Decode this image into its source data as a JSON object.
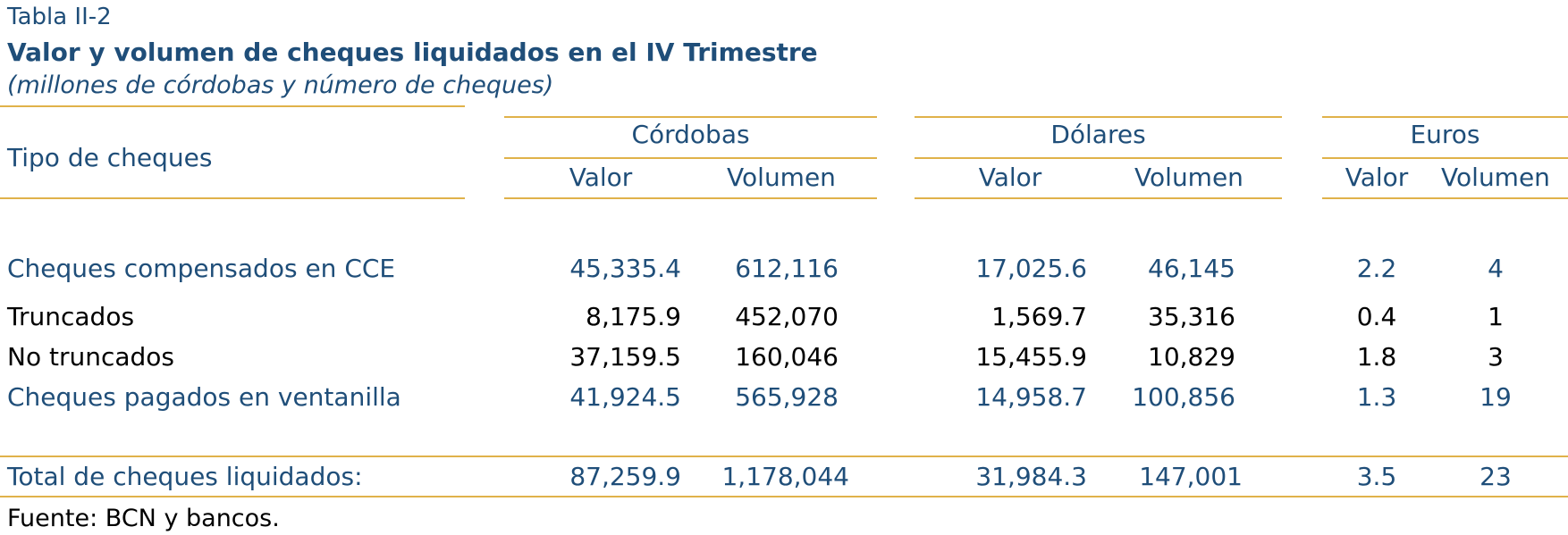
{
  "table_number": "Tabla II-2",
  "title": "Valor y volumen de cheques liquidados en el IV Trimestre",
  "subtitle": "(millones de córdobas y número de cheques)",
  "header": {
    "row_label": "Tipo de cheques",
    "currencies": [
      "Córdobas",
      "Dólares",
      "Euros"
    ],
    "valor": "Valor",
    "volumen": "Volumen"
  },
  "rows": [
    {
      "label": "Cheques compensados en CCE",
      "cor_valor": "45,335.4",
      "cor_vol": "612,116",
      "dol_valor": "17,025.6",
      "dol_vol": "46,145",
      "eur_valor": "2.2",
      "eur_vol": "4"
    },
    {
      "label": "Truncados",
      "cor_valor": "8,175.9",
      "cor_vol": "452,070",
      "dol_valor": "1,569.7",
      "dol_vol": "35,316",
      "eur_valor": "0.4",
      "eur_vol": "1"
    },
    {
      "label": "No truncados",
      "cor_valor": "37,159.5",
      "cor_vol": "160,046",
      "dol_valor": "15,455.9",
      "dol_vol": "10,829",
      "eur_valor": "1.8",
      "eur_vol": "3"
    },
    {
      "label": "Cheques pagados en ventanilla",
      "cor_valor": "41,924.5",
      "cor_vol": "565,928",
      "dol_valor": "14,958.7",
      "dol_vol": "100,856",
      "eur_valor": "1.3",
      "eur_vol": "19"
    }
  ],
  "total": {
    "label": "Total de cheques liquidados:",
    "cor_valor": "87,259.9",
    "cor_vol": "1,178,044",
    "dol_valor": "31,984.3",
    "dol_vol": "147,001",
    "eur_valor": "3.5",
    "eur_vol": "23"
  },
  "source": "Fuente: BCN y bancos.",
  "colors": {
    "title_blue": "#1f4e79",
    "rule_gold": "#e0b24a",
    "text_black": "#000000"
  }
}
